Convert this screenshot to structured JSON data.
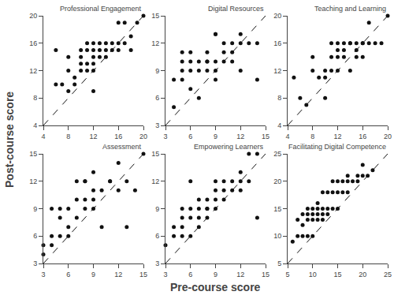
{
  "xlabel": "Pre-course score",
  "ylabel": "Post-course score",
  "chart_data": [
    {
      "type": "scatter",
      "title": "Professional Engagement",
      "x": [
        6,
        6,
        7,
        8,
        8,
        8,
        9,
        9,
        10,
        10,
        10,
        10,
        11,
        11,
        11,
        11,
        12,
        12,
        12,
        12,
        12,
        12,
        13,
        13,
        13,
        14,
        14,
        14,
        15,
        15,
        16,
        16,
        16,
        17,
        17,
        18,
        18,
        19,
        20
      ],
      "values": [
        10,
        15,
        10,
        9,
        12,
        14,
        10,
        11,
        12,
        13,
        14,
        15,
        12,
        13,
        15,
        16,
        9,
        12,
        13,
        14,
        15,
        16,
        14,
        15,
        16,
        14,
        15,
        16,
        15,
        16,
        15,
        16,
        19,
        16,
        19,
        15,
        17,
        19,
        20
      ],
      "color": "#111111",
      "line_style": "dashed",
      "grid": false,
      "xlim": [
        4,
        20
      ],
      "ylim": [
        4,
        20
      ],
      "xticks": [
        4,
        8,
        12,
        16,
        20
      ],
      "yticks": [
        4,
        8,
        12,
        16,
        20
      ]
    },
    {
      "type": "scatter",
      "title": "Digital Resources",
      "x": [
        4,
        4,
        5,
        5,
        5,
        5,
        6,
        6,
        6,
        6,
        7,
        7,
        7,
        8,
        8,
        8,
        8,
        9,
        9,
        9,
        9,
        9,
        10,
        10,
        10,
        11,
        11,
        11,
        12,
        12,
        12,
        13,
        14,
        14
      ],
      "values": [
        5,
        8,
        8,
        9,
        10,
        11,
        7,
        9,
        10,
        11,
        6,
        9,
        10,
        9,
        10,
        10,
        11,
        8,
        9,
        10,
        13,
        13,
        10,
        11,
        12,
        10,
        11,
        12,
        9,
        12,
        13,
        12,
        12,
        8
      ],
      "color": "#111111",
      "line_style": "dashed",
      "grid": false,
      "xlim": [
        3,
        15
      ],
      "ylim": [
        3,
        15
      ],
      "xticks": [
        3,
        6,
        9,
        12,
        15
      ],
      "yticks": [
        3,
        6,
        9,
        12,
        15
      ]
    },
    {
      "type": "scatter",
      "title": "Teaching and Learning",
      "x": [
        5,
        6,
        7,
        8,
        8,
        9,
        10,
        10,
        10,
        11,
        11,
        11,
        12,
        12,
        12,
        12,
        13,
        13,
        13,
        14,
        14,
        14,
        15,
        15,
        15,
        16,
        16,
        16,
        17,
        17,
        18,
        19,
        20
      ],
      "values": [
        11,
        8,
        7,
        12,
        14,
        11,
        8,
        11,
        12,
        12,
        14,
        16,
        12,
        14,
        15,
        16,
        14,
        15,
        16,
        12,
        16,
        16,
        14,
        15,
        16,
        14,
        16,
        16,
        16,
        19,
        16,
        16,
        20
      ],
      "color": "#111111",
      "line_style": "dashed",
      "grid": false,
      "xlim": [
        4,
        20
      ],
      "ylim": [
        4,
        20
      ],
      "xticks": [
        4,
        8,
        12,
        16,
        20
      ],
      "yticks": [
        4,
        8,
        12,
        16,
        20
      ]
    },
    {
      "type": "scatter",
      "title": "Assessment",
      "x": [
        3,
        3,
        4,
        4,
        4,
        5,
        5,
        5,
        6,
        6,
        6,
        7,
        7,
        7,
        8,
        8,
        8,
        8,
        9,
        9,
        9,
        9,
        10,
        10,
        11,
        11,
        12,
        12,
        13,
        13,
        14,
        15
      ],
      "values": [
        4,
        5,
        5,
        6,
        9,
        6,
        8,
        9,
        6,
        7,
        9,
        8,
        10,
        12,
        9,
        10,
        12,
        12,
        9,
        10,
        11,
        13,
        7,
        11,
        12,
        12,
        11,
        14,
        7,
        12,
        11,
        15
      ],
      "color": "#111111",
      "line_style": "dashed",
      "grid": false,
      "xlim": [
        3,
        15
      ],
      "ylim": [
        3,
        15
      ],
      "xticks": [
        3,
        6,
        9,
        12,
        15
      ],
      "yticks": [
        3,
        6,
        9,
        12,
        15
      ]
    },
    {
      "type": "scatter",
      "title": "Empowering Learners",
      "x": [
        3,
        4,
        4,
        5,
        5,
        5,
        5,
        6,
        6,
        6,
        6,
        7,
        7,
        7,
        7,
        8,
        8,
        8,
        8,
        9,
        9,
        9,
        9,
        10,
        10,
        10,
        11,
        11,
        12,
        12,
        12,
        13,
        13,
        14,
        14
      ],
      "values": [
        5,
        6,
        7,
        6,
        7,
        8,
        9,
        6,
        8,
        9,
        12,
        7,
        8,
        9,
        10,
        8,
        9,
        9,
        10,
        9,
        10,
        11,
        12,
        10,
        11,
        12,
        11,
        12,
        11,
        12,
        13,
        12,
        15,
        15,
        8
      ],
      "color": "#111111",
      "line_style": "dashed",
      "grid": false,
      "xlim": [
        3,
        15
      ],
      "ylim": [
        3,
        15
      ],
      "xticks": [
        3,
        6,
        9,
        12,
        15
      ],
      "yticks": [
        3,
        6,
        9,
        12,
        15
      ]
    },
    {
      "type": "scatter",
      "title": "Facilitating Digital Competence",
      "x": [
        6,
        7,
        7,
        8,
        8,
        8,
        9,
        9,
        9,
        9,
        10,
        10,
        10,
        10,
        11,
        11,
        11,
        11,
        12,
        12,
        12,
        12,
        13,
        13,
        13,
        14,
        14,
        14,
        15,
        15,
        15,
        16,
        16,
        17,
        17,
        17,
        18,
        19,
        19,
        20,
        20,
        21,
        22
      ],
      "values": [
        9,
        10,
        13,
        10,
        12,
        14,
        10,
        13,
        14,
        15,
        10,
        13,
        14,
        15,
        13,
        14,
        15,
        16,
        13,
        14,
        15,
        18,
        14,
        15,
        18,
        15,
        18,
        20,
        15,
        18,
        20,
        18,
        20,
        18,
        20,
        21,
        20,
        20,
        21,
        21,
        23,
        21,
        22
      ],
      "color": "#111111",
      "line_style": "dashed",
      "grid": false,
      "xlim": [
        5,
        25
      ],
      "ylim": [
        5,
        25
      ],
      "xticks": [
        5,
        10,
        15,
        20,
        25
      ],
      "yticks": [
        5,
        10,
        15,
        20,
        25
      ]
    }
  ]
}
